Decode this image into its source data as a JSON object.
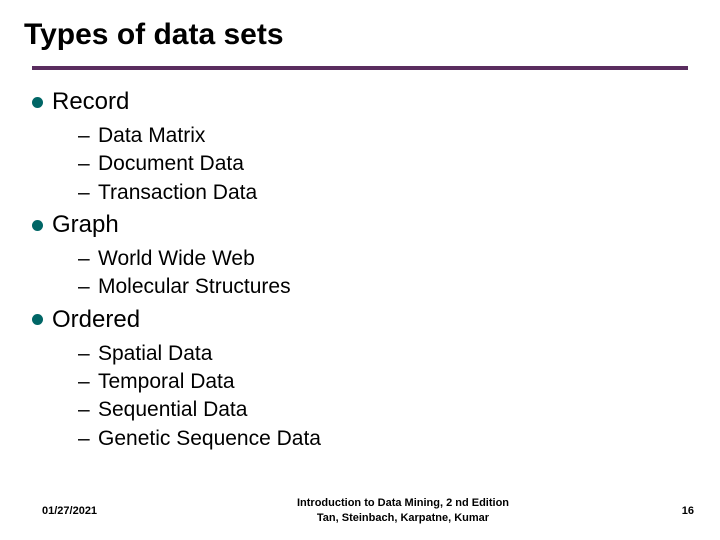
{
  "title": "Types of data sets",
  "rule_color": "#5a2d5f",
  "bullet_color": "#006666",
  "sections": {
    "0": {
      "label": "Record",
      "items": {
        "0": "Data Matrix",
        "1": "Document Data",
        "2": "Transaction Data"
      }
    },
    "1": {
      "label": "Graph",
      "items": {
        "0": "World Wide Web",
        "1": "Molecular Structures"
      }
    },
    "2": {
      "label": "Ordered",
      "items": {
        "0": "Spatial Data",
        "1": "Temporal Data",
        "2": "Sequential Data",
        "3": "Genetic Sequence Data"
      }
    }
  },
  "footer": {
    "date": "01/27/2021",
    "center_line1": "Introduction to Data Mining, 2 nd Edition",
    "center_line2": "Tan, Steinbach, Karpatne, Kumar",
    "page": "16"
  },
  "typography": {
    "title_fontsize": 30,
    "l1_fontsize": 24,
    "l2_fontsize": 21,
    "footer_fontsize": 11
  }
}
